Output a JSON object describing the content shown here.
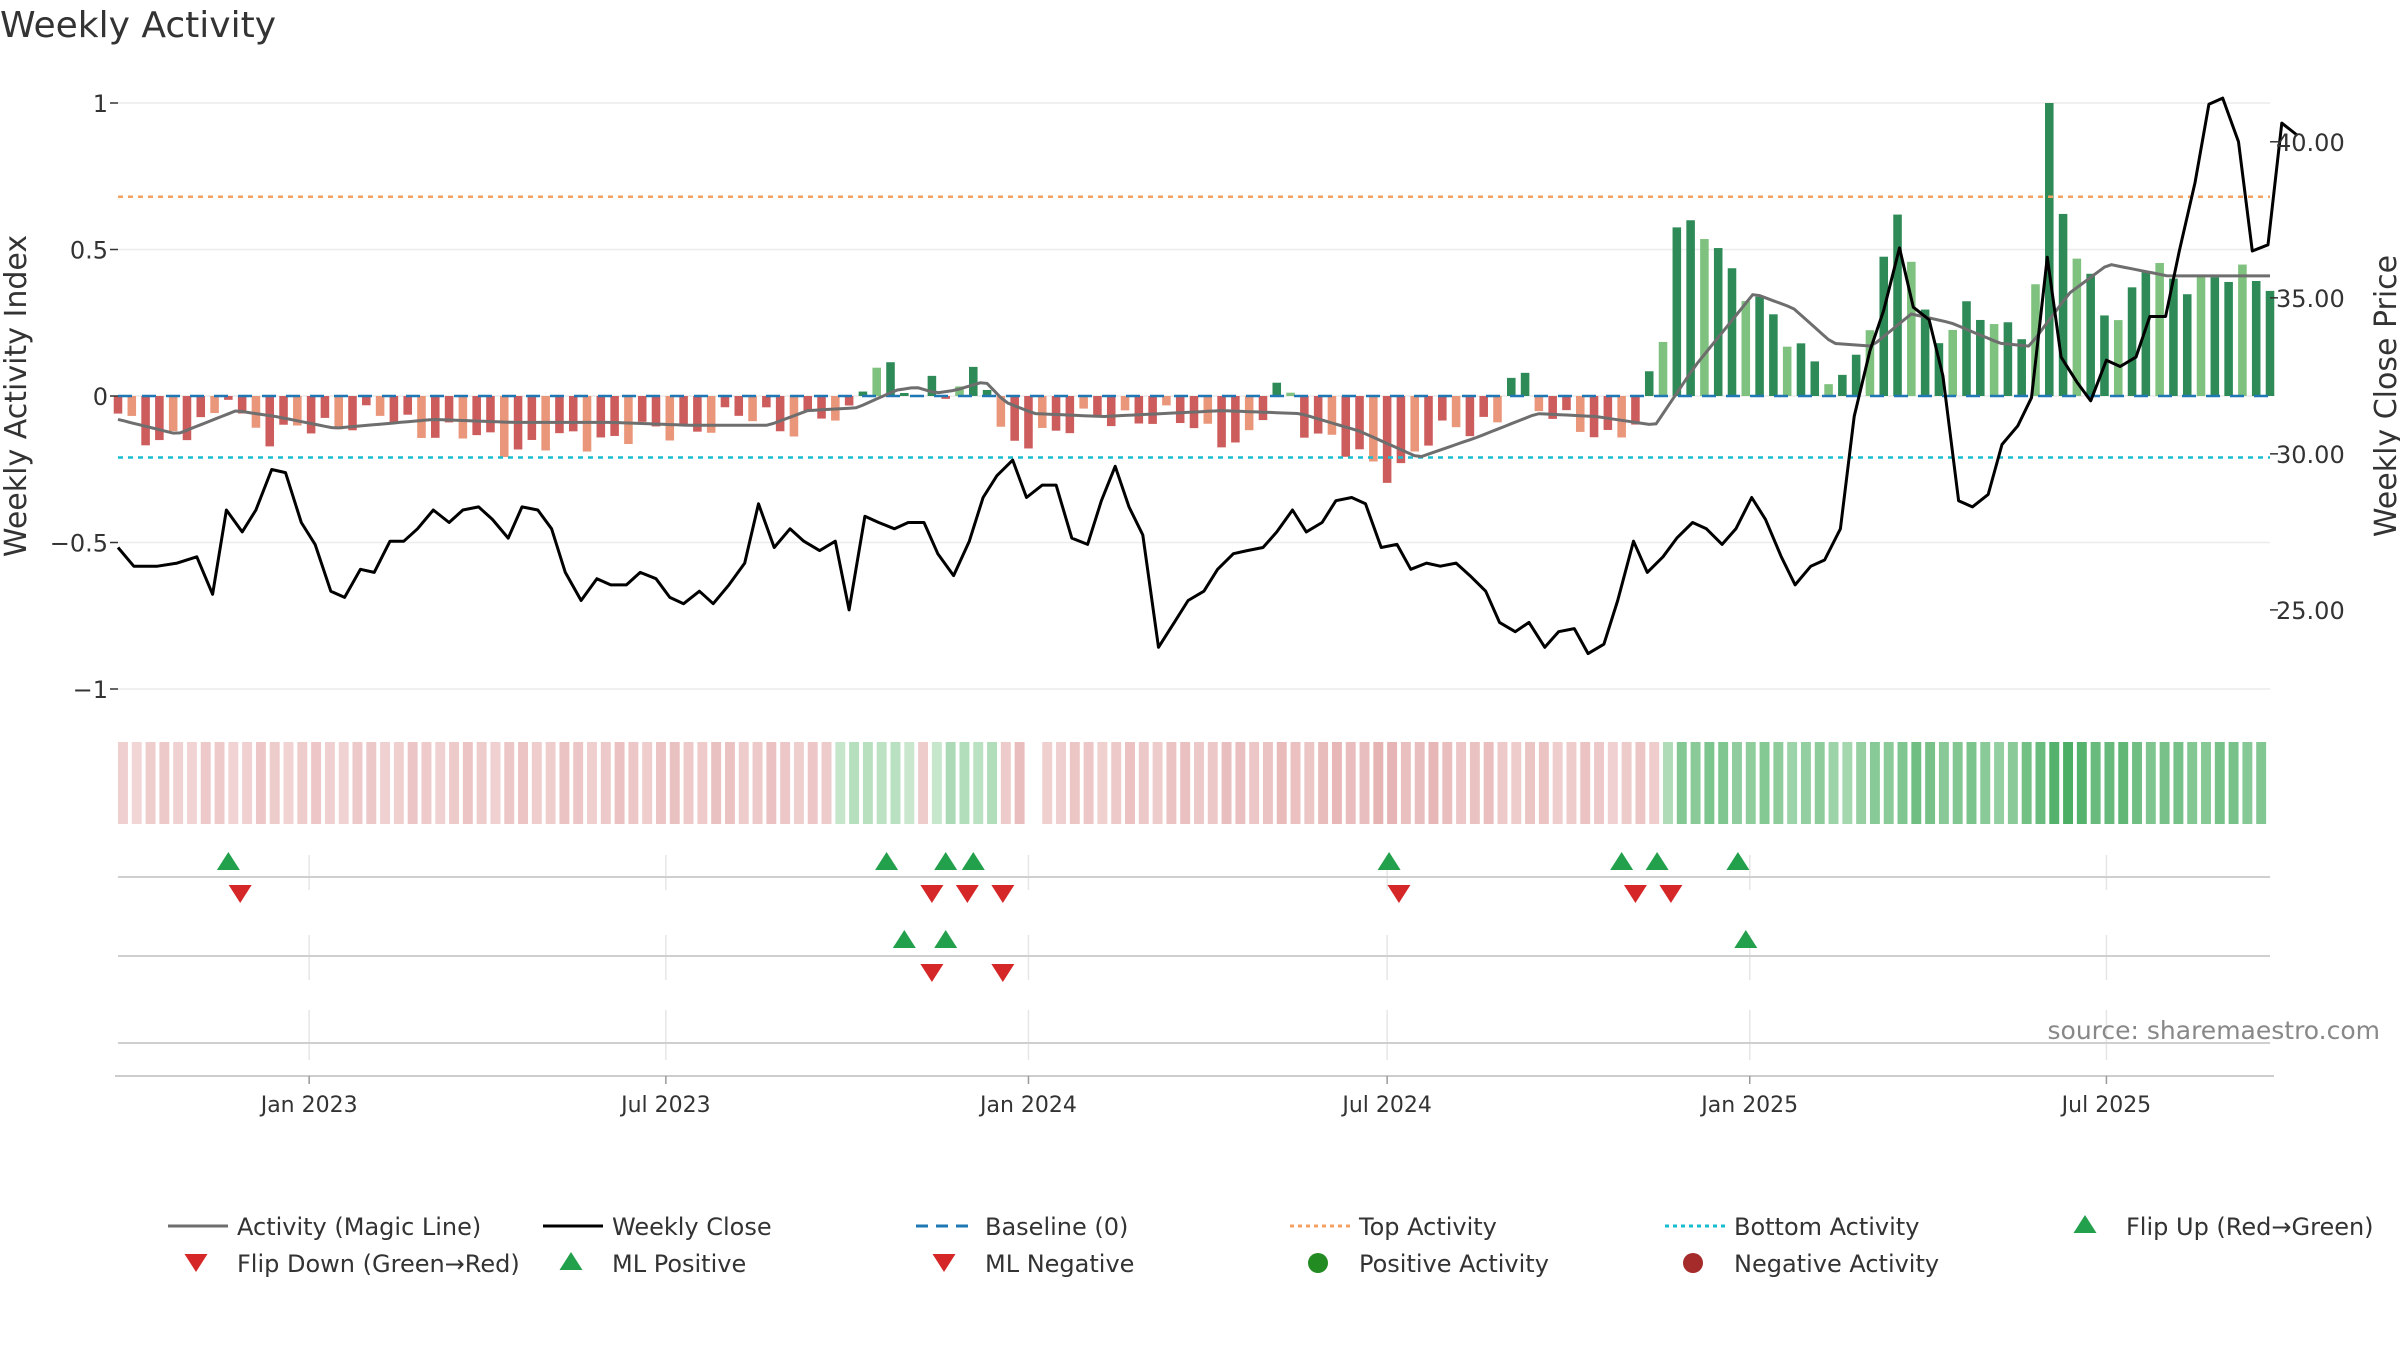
{
  "chart_data": {
    "type": "bar",
    "title": "Weekly Activity",
    "ylabel_left": "Weekly Activity Index",
    "ylabel_right": "Weekly Close Price",
    "ylim_left": [
      -1.1,
      1.1
    ],
    "ylim_right": [
      21.6,
      42.3
    ],
    "x_start": "2022-09-26",
    "x_end": "2025-09-22",
    "left_ticks": [
      {
        "value": 1,
        "label": "1"
      },
      {
        "value": 0.5,
        "label": "0.5"
      },
      {
        "value": 0,
        "label": "0"
      },
      {
        "value": -0.5,
        "label": "−0.5"
      },
      {
        "value": -1,
        "label": "−1"
      }
    ],
    "right_ticks": [
      {
        "value": 40,
        "label": "40.00"
      },
      {
        "value": 35,
        "label": "35.00"
      },
      {
        "value": 30,
        "label": "30.00"
      },
      {
        "value": 25,
        "label": "25.00"
      }
    ],
    "x_ticks": [
      {
        "date": "2023-01-01",
        "label": "Jan 2023"
      },
      {
        "date": "2023-07-01",
        "label": "Jul 2023"
      },
      {
        "date": "2024-01-01",
        "label": "Jan 2024"
      },
      {
        "date": "2024-07-01",
        "label": "Jul 2024"
      },
      {
        "date": "2025-01-01",
        "label": "Jan 2025"
      },
      {
        "date": "2025-07-01",
        "label": "Jul 2025"
      }
    ],
    "top_activity": 0.68,
    "bottom_activity": -0.21,
    "baseline": 0,
    "colors": {
      "pos_strong": "#2e8b57",
      "pos_light": "#7fc17f",
      "neg_strong": "#cd5c5c",
      "neg_light": "#e9967a",
      "magic_line": "#6e6e6e",
      "close": "#000000",
      "baseline": "#1f77b4",
      "top": "#f4a261",
      "bottom": "#17becf",
      "up_marker": "#22a04b",
      "down_marker": "#d62728",
      "pos_dot": "#228b22",
      "neg_dot": "#a52a2a"
    },
    "activity_keys": [
      [
        0,
        -0.08
      ],
      [
        10,
        -0.12
      ],
      [
        20,
        -0.14
      ],
      [
        35,
        -0.12
      ],
      [
        50,
        -0.09
      ],
      [
        55,
        0.04
      ],
      [
        60,
        -0.05
      ],
      [
        80,
        -0.15
      ],
      [
        100,
        -0.1
      ],
      [
        130,
        -0.07
      ],
      [
        165,
        -0.12
      ],
      [
        190,
        -0.16
      ],
      [
        210,
        -0.17
      ],
      [
        245,
        -0.14
      ],
      [
        270,
        -0.13
      ],
      [
        305,
        -0.09
      ],
      [
        330,
        -0.06
      ],
      [
        345,
        -0.12
      ],
      [
        355,
        -0.07
      ],
      [
        365,
        -0.09
      ],
      [
        373,
        -0.05
      ],
      [
        381,
        0.13
      ],
      [
        393,
        0.08
      ],
      [
        405,
        -0.03
      ],
      [
        415,
        0.06
      ],
      [
        425,
        0.02
      ],
      [
        433,
        0.09
      ],
      [
        440,
        0.07
      ],
      [
        450,
        -0.2
      ],
      [
        465,
        -0.12
      ],
      [
        485,
        -0.1
      ],
      [
        515,
        -0.06
      ],
      [
        545,
        -0.1
      ],
      [
        575,
        -0.16
      ],
      [
        590,
        0.06
      ],
      [
        600,
        -0.08
      ],
      [
        625,
        -0.2
      ],
      [
        640,
        -0.25
      ],
      [
        650,
        -0.24
      ],
      [
        665,
        -0.15
      ],
      [
        685,
        -0.1
      ],
      [
        700,
        -0.07
      ],
      [
        708,
        0.1
      ],
      [
        720,
        -0.05
      ],
      [
        740,
        -0.07
      ],
      [
        755,
        -0.17
      ],
      [
        770,
        -0.1
      ],
      [
        785,
        0.26
      ],
      [
        790,
        0.58
      ],
      [
        805,
        0.55
      ],
      [
        815,
        0.45
      ],
      [
        835,
        0.32
      ],
      [
        850,
        0.15
      ],
      [
        865,
        0.1
      ],
      [
        875,
        0.06
      ],
      [
        890,
        0.25
      ],
      [
        905,
        0.68
      ],
      [
        915,
        0.3
      ],
      [
        925,
        0.2
      ],
      [
        940,
        0.28
      ],
      [
        955,
        0.25
      ],
      [
        965,
        0.22
      ],
      [
        975,
        0.42
      ],
      [
        980,
        1.0
      ],
      [
        990,
        0.48
      ],
      [
        1000,
        0.42
      ],
      [
        1015,
        0.25
      ],
      [
        1030,
        0.45
      ],
      [
        1040,
        0.4
      ]
    ],
    "magic_keys": [
      [
        0,
        -0.08
      ],
      [
        30,
        -0.13
      ],
      [
        60,
        -0.05
      ],
      [
        80,
        -0.07
      ],
      [
        110,
        -0.11
      ],
      [
        160,
        -0.08
      ],
      [
        200,
        -0.09
      ],
      [
        250,
        -0.09
      ],
      [
        290,
        -0.1
      ],
      [
        330,
        -0.1
      ],
      [
        350,
        -0.05
      ],
      [
        375,
        -0.04
      ],
      [
        395,
        0.02
      ],
      [
        405,
        0.03
      ],
      [
        415,
        0.01
      ],
      [
        425,
        0.02
      ],
      [
        440,
        0.05
      ],
      [
        450,
        -0.02
      ],
      [
        465,
        -0.06
      ],
      [
        500,
        -0.07
      ],
      [
        560,
        -0.05
      ],
      [
        600,
        -0.06
      ],
      [
        630,
        -0.12
      ],
      [
        660,
        -0.21
      ],
      [
        690,
        -0.14
      ],
      [
        720,
        -0.06
      ],
      [
        750,
        -0.07
      ],
      [
        780,
        -0.1
      ],
      [
        800,
        0.1
      ],
      [
        830,
        0.35
      ],
      [
        850,
        0.3
      ],
      [
        870,
        0.18
      ],
      [
        890,
        0.17
      ],
      [
        910,
        0.28
      ],
      [
        930,
        0.25
      ],
      [
        955,
        0.18
      ],
      [
        970,
        0.17
      ],
      [
        990,
        0.35
      ],
      [
        1010,
        0.45
      ],
      [
        1040,
        0.41
      ]
    ],
    "close_keys": [
      [
        0,
        27.0
      ],
      [
        8,
        26.4
      ],
      [
        20,
        26.4
      ],
      [
        30,
        26.5
      ],
      [
        40,
        26.7
      ],
      [
        48,
        25.5
      ],
      [
        55,
        28.2
      ],
      [
        63,
        27.5
      ],
      [
        70,
        28.2
      ],
      [
        78,
        29.5
      ],
      [
        85,
        29.4
      ],
      [
        93,
        27.8
      ],
      [
        100,
        27.1
      ],
      [
        108,
        25.6
      ],
      [
        115,
        25.4
      ],
      [
        123,
        26.3
      ],
      [
        130,
        26.2
      ],
      [
        138,
        27.2
      ],
      [
        145,
        27.2
      ],
      [
        152,
        27.6
      ],
      [
        160,
        28.2
      ],
      [
        168,
        27.8
      ],
      [
        175,
        28.2
      ],
      [
        183,
        28.3
      ],
      [
        190,
        27.9
      ],
      [
        198,
        27.3
      ],
      [
        205,
        28.3
      ],
      [
        213,
        28.2
      ],
      [
        220,
        27.6
      ],
      [
        227,
        26.2
      ],
      [
        235,
        25.3
      ],
      [
        243,
        26.0
      ],
      [
        250,
        25.8
      ],
      [
        258,
        25.8
      ],
      [
        265,
        26.2
      ],
      [
        273,
        26.0
      ],
      [
        280,
        25.4
      ],
      [
        287,
        25.2
      ],
      [
        295,
        25.6
      ],
      [
        302,
        25.2
      ],
      [
        310,
        25.8
      ],
      [
        318,
        26.5
      ],
      [
        325,
        28.4
      ],
      [
        333,
        27.0
      ],
      [
        341,
        27.6
      ],
      [
        348,
        27.2
      ],
      [
        356,
        26.9
      ],
      [
        364,
        27.2
      ],
      [
        371,
        25.0
      ],
      [
        379,
        28.0
      ],
      [
        386,
        27.8
      ],
      [
        394,
        27.6
      ],
      [
        401,
        27.8
      ],
      [
        409,
        27.8
      ],
      [
        416,
        26.8
      ],
      [
        424,
        26.1
      ],
      [
        432,
        27.2
      ],
      [
        439,
        28.6
      ],
      [
        446,
        29.3
      ],
      [
        454,
        29.8
      ],
      [
        461,
        28.6
      ],
      [
        469,
        29.0
      ],
      [
        476,
        29.0
      ],
      [
        484,
        27.3
      ],
      [
        492,
        27.1
      ],
      [
        499,
        28.5
      ],
      [
        506,
        29.6
      ],
      [
        513,
        28.3
      ],
      [
        520,
        27.4
      ],
      [
        528,
        23.8
      ],
      [
        536,
        24.6
      ],
      [
        543,
        25.3
      ],
      [
        551,
        25.6
      ],
      [
        558,
        26.3
      ],
      [
        566,
        26.8
      ],
      [
        573,
        26.9
      ],
      [
        581,
        27.0
      ],
      [
        588,
        27.5
      ],
      [
        596,
        28.2
      ],
      [
        603,
        27.5
      ],
      [
        611,
        27.8
      ],
      [
        618,
        28.5
      ],
      [
        626,
        28.6
      ],
      [
        633,
        28.4
      ],
      [
        641,
        27.0
      ],
      [
        649,
        27.1
      ],
      [
        656,
        26.3
      ],
      [
        664,
        26.5
      ],
      [
        671,
        26.4
      ],
      [
        679,
        26.5
      ],
      [
        686,
        26.1
      ],
      [
        694,
        25.6
      ],
      [
        701,
        24.6
      ],
      [
        709,
        24.3
      ],
      [
        716,
        24.6
      ],
      [
        724,
        23.8
      ],
      [
        731,
        24.3
      ],
      [
        739,
        24.4
      ],
      [
        746,
        23.6
      ],
      [
        754,
        23.9
      ],
      [
        761,
        25.3
      ],
      [
        769,
        27.2
      ],
      [
        776,
        26.2
      ],
      [
        784,
        26.7
      ],
      [
        791,
        27.3
      ],
      [
        799,
        27.8
      ],
      [
        806,
        27.6
      ],
      [
        814,
        27.1
      ],
      [
        821,
        27.6
      ],
      [
        829,
        28.6
      ],
      [
        836,
        27.9
      ],
      [
        844,
        26.7
      ],
      [
        851,
        25.8
      ],
      [
        859,
        26.4
      ],
      [
        866,
        26.6
      ],
      [
        874,
        27.6
      ],
      [
        881,
        31.2
      ],
      [
        889,
        33.3
      ],
      [
        896,
        34.6
      ],
      [
        904,
        36.6
      ],
      [
        911,
        34.7
      ],
      [
        919,
        34.3
      ],
      [
        926,
        32.5
      ],
      [
        934,
        28.5
      ],
      [
        941,
        28.3
      ],
      [
        949,
        28.7
      ],
      [
        956,
        30.3
      ],
      [
        964,
        30.9
      ],
      [
        971,
        31.8
      ],
      [
        979,
        36.3
      ],
      [
        986,
        33.1
      ],
      [
        994,
        32.3
      ],
      [
        1001,
        31.7
      ],
      [
        1009,
        33.0
      ],
      [
        1016,
        32.8
      ],
      [
        1024,
        33.1
      ],
      [
        1031,
        34.4
      ],
      [
        1039,
        34.4
      ],
      [
        1046,
        36.5
      ],
      [
        1054,
        38.7
      ],
      [
        1061,
        41.2
      ],
      [
        1068,
        41.4
      ],
      [
        1076,
        40.0
      ],
      [
        1083,
        36.5
      ],
      [
        1091,
        36.7
      ],
      [
        1098,
        40.6
      ],
      [
        1106,
        40.2
      ]
    ],
    "strip_keys": [
      [
        0,
        -0.07
      ],
      [
        150,
        -0.1
      ],
      [
        300,
        -0.16
      ],
      [
        350,
        -0.13
      ],
      [
        380,
        0.2
      ],
      [
        405,
        -0.05
      ],
      [
        420,
        0.15
      ],
      [
        440,
        0.2
      ],
      [
        450,
        -0.25
      ],
      [
        470,
        -0.1
      ],
      [
        600,
        -0.22
      ],
      [
        640,
        -0.3
      ],
      [
        700,
        -0.15
      ],
      [
        780,
        -0.1
      ],
      [
        790,
        0.5
      ],
      [
        880,
        0.3
      ],
      [
        905,
        0.55
      ],
      [
        960,
        0.4
      ],
      [
        980,
        0.8
      ],
      [
        1040,
        0.5
      ]
    ],
    "strip_gaps": [
      0,
      0,
      0,
      0,
      0,
      0,
      0,
      0,
      0,
      0,
      0,
      0,
      0,
      0,
      0,
      0,
      0,
      0,
      0,
      0,
      0,
      0,
      0,
      0,
      0,
      0,
      0,
      0,
      0,
      0,
      0,
      0,
      0,
      0,
      0,
      0,
      0,
      0,
      0,
      0,
      0,
      0,
      0,
      0,
      0,
      0,
      0,
      0,
      0,
      0,
      0,
      0,
      0,
      0,
      0,
      0,
      0,
      0,
      0,
      0,
      0,
      0,
      0,
      0,
      0,
      0,
      0,
      0,
      0,
      0,
      0,
      0,
      0,
      0,
      0,
      0,
      0,
      0,
      0,
      0,
      0,
      0,
      0,
      0,
      0,
      0,
      0,
      0,
      0,
      0,
      0,
      0,
      0,
      0,
      0,
      0,
      0,
      0,
      0,
      0,
      0,
      0,
      0,
      0,
      0,
      0,
      0,
      0,
      0,
      0,
      0,
      0,
      0,
      0,
      0,
      0,
      0,
      0,
      0,
      0,
      0,
      0,
      0,
      0,
      0,
      0,
      0,
      0,
      0,
      0,
      0,
      0,
      0,
      0,
      0,
      0,
      0,
      0,
      0,
      0,
      0,
      0,
      0,
      0,
      0,
      0,
      0,
      0,
      0,
      0,
      0,
      0,
      0,
      0,
      0,
      0,
      0,
      0
    ],
    "strip_gap_day": 460,
    "flip_up_days": [
      56,
      390,
      420,
      434,
      645,
      763,
      781,
      822
    ],
    "flip_down_days": [
      62,
      413,
      431,
      449,
      650,
      770,
      788
    ],
    "ml_positive_days": [
      399,
      420,
      826
    ],
    "ml_negative_days": [
      413,
      449
    ],
    "source": "source: sharemaestro.com",
    "legend": [
      {
        "label": "Activity (Magic Line)",
        "kind": "line",
        "color": "#6e6e6e",
        "dash": ""
      },
      {
        "label": "Weekly Close",
        "kind": "line",
        "color": "#000000",
        "dash": ""
      },
      {
        "label": "Baseline (0)",
        "kind": "line",
        "color": "#1f77b4",
        "dash": "12 8"
      },
      {
        "label": "Top Activity",
        "kind": "line",
        "color": "#f4a261",
        "dash": "4 4"
      },
      {
        "label": "Bottom Activity",
        "kind": "line",
        "color": "#17becf",
        "dash": "4 4"
      },
      {
        "label": "Flip Up (Red→Green)",
        "kind": "up",
        "color": "#22a04b"
      },
      {
        "label": "Flip Down (Green→Red)",
        "kind": "down",
        "color": "#d62728"
      },
      {
        "label": "ML Positive",
        "kind": "up",
        "color": "#22a04b"
      },
      {
        "label": "ML Negative",
        "kind": "down",
        "color": "#d62728"
      },
      {
        "label": "Positive Activity",
        "kind": "dot",
        "color": "#228b22"
      },
      {
        "label": "Negative Activity",
        "kind": "dot",
        "color": "#a52a2a"
      }
    ]
  }
}
